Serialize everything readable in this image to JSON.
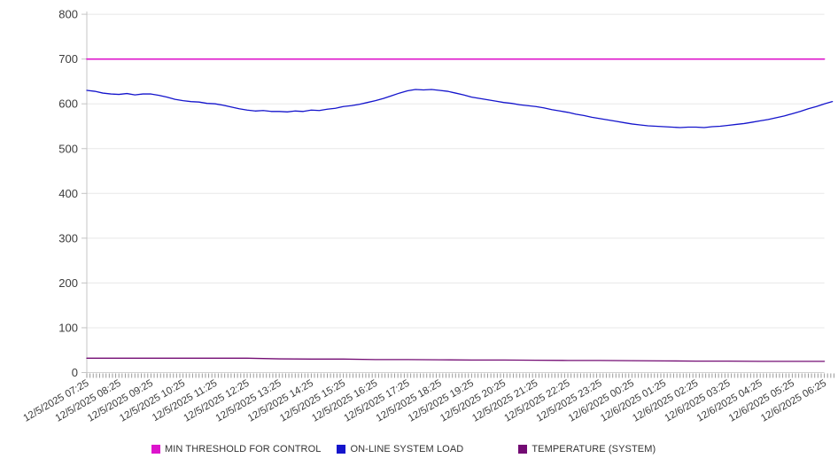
{
  "chart_data": {
    "type": "line",
    "title": "",
    "xlabel": "",
    "ylabel": "",
    "ylim": [
      0,
      800
    ],
    "y_ticks": [
      0,
      100,
      200,
      300,
      400,
      500,
      600,
      700,
      800
    ],
    "grid": "horizontal-light",
    "legend_position": "bottom",
    "x_tick_labels": [
      "12/5/2025 07:25",
      "12/5/2025 08:25",
      "12/5/2025 09:25",
      "12/5/2025 10:25",
      "12/5/2025 11:25",
      "12/5/2025 12:25",
      "12/5/2025 13:25",
      "12/5/2025 14:25",
      "12/5/2025 15:25",
      "12/5/2025 16:25",
      "12/5/2025 17:25",
      "12/5/2025 18:25",
      "12/5/2025 19:25",
      "12/5/2025 20:25",
      "12/5/2025 21:25",
      "12/5/2025 22:25",
      "12/5/2025 23:25",
      "12/6/2025 00:25",
      "12/6/2025 01:25",
      "12/6/2025 02:25",
      "12/6/2025 03:25",
      "12/6/2025 04:25",
      "12/6/2025 05:25",
      "12/6/2025 06:25"
    ],
    "x_minor_ticks_per_hour": 10,
    "series": [
      {
        "name": "MIN THRESHOLD FOR CONTROL",
        "slug": "min-threshold-for-control",
        "color": "#dd14cc",
        "stroke_width": 1.6,
        "span_hours": 23.0,
        "values": [
          700,
          700
        ]
      },
      {
        "name": "ON-LINE SYSTEM LOAD",
        "slug": "on-line-system-load",
        "color": "#1414cc",
        "stroke_width": 1.3,
        "span_hours": 23.25,
        "values": [
          630,
          628,
          624,
          622,
          621,
          623,
          620,
          622,
          622,
          619,
          615,
          610,
          607,
          605,
          604,
          601,
          600,
          597,
          593,
          589,
          586,
          584,
          585,
          583,
          583,
          582,
          584,
          583,
          586,
          585,
          588,
          590,
          594,
          596,
          599,
          603,
          607,
          612,
          618,
          624,
          629,
          632,
          631,
          632,
          630,
          628,
          624,
          620,
          615,
          612,
          609,
          606,
          603,
          601,
          598,
          596,
          594,
          591,
          587,
          584,
          581,
          577,
          574,
          570,
          567,
          564,
          561,
          558,
          555,
          553,
          551,
          550,
          549,
          548,
          547,
          548,
          548,
          547,
          549,
          550,
          552,
          554,
          556,
          559,
          562,
          565,
          569,
          573,
          578,
          583,
          589,
          594,
          600,
          605
        ]
      },
      {
        "name": "TEMPERATURE (SYSTEM)",
        "slug": "temperature-system",
        "color": "#730b73",
        "stroke_width": 1.3,
        "span_hours": 23.0,
        "values": [
          32,
          32,
          32,
          32,
          32,
          32,
          30.5,
          30,
          30,
          29,
          29,
          28.5,
          28,
          28,
          27.5,
          27,
          27,
          26.5,
          26,
          25.5,
          25.5,
          25,
          25,
          25
        ]
      }
    ],
    "style": {
      "grid_color": "#e8e8e8",
      "zero_axis_color": "#d2d2d2",
      "spine_color": "#c4c4c4",
      "minor_tick_color": "#9a9a9a",
      "tick_label_color": "#3c3c3c"
    }
  }
}
